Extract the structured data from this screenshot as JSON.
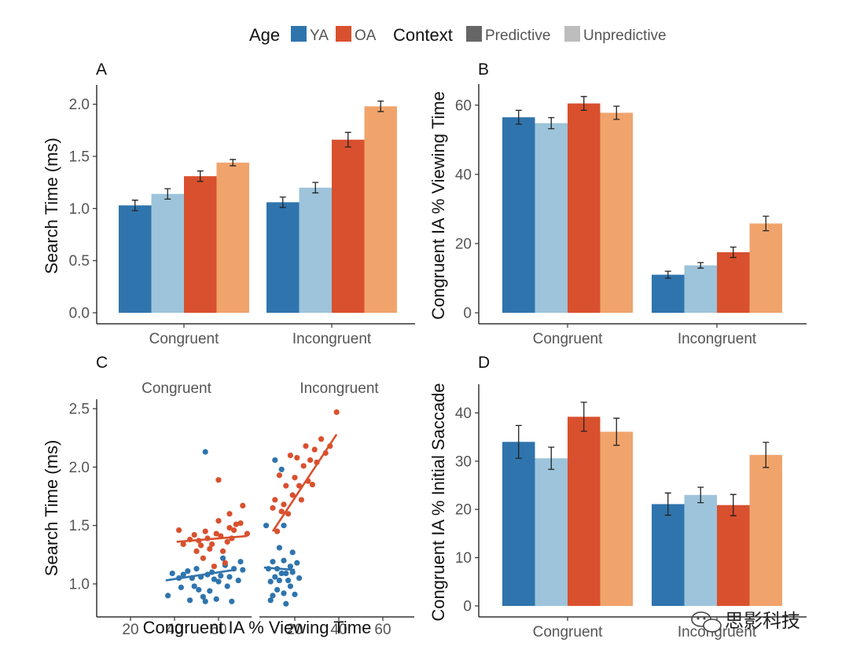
{
  "legend": {
    "age_title": "Age",
    "age_items": [
      {
        "label": "YA",
        "color": "#2f74ad"
      },
      {
        "label": "OA",
        "color": "#d9502e"
      }
    ],
    "context_title": "Context",
    "context_items": [
      {
        "label": "Predictive",
        "color": "#666666"
      },
      {
        "label": "Unpredictive",
        "color": "#bdbdbd"
      }
    ]
  },
  "colors": {
    "ya_pred": "#2f74ad",
    "ya_unpred": "#9dc4da",
    "oa_pred": "#d9502e",
    "oa_unpred": "#f0a46c"
  },
  "watermark": "思影科技",
  "chart_data": [
    {
      "panel": "A",
      "type": "bar",
      "categories": [
        "Congruent",
        "Incongruent"
      ],
      "ylabel": "Search Time (ms)",
      "xlabel": "",
      "ylim": [
        0,
        2.05
      ],
      "yticks": [
        0.0,
        0.5,
        1.0,
        1.5,
        2.0
      ],
      "ytick_labels": [
        "0.0",
        "0.5",
        "1.0",
        "1.5",
        "2.0"
      ],
      "series": [
        {
          "group": "YA-Predictive",
          "values": [
            1.03,
            1.06
          ],
          "errors": [
            0.05,
            0.05
          ]
        },
        {
          "group": "YA-Unpredictive",
          "values": [
            1.14,
            1.2
          ],
          "errors": [
            0.05,
            0.05
          ]
        },
        {
          "group": "OA-Predictive",
          "values": [
            1.31,
            1.66
          ],
          "errors": [
            0.05,
            0.07
          ]
        },
        {
          "group": "OA-Unpredictive",
          "values": [
            1.44,
            1.98
          ],
          "errors": [
            0.03,
            0.05
          ]
        }
      ]
    },
    {
      "panel": "B",
      "type": "bar",
      "categories": [
        "Congruent",
        "Incongruent"
      ],
      "ylabel": "Congruent IA % Viewing Time",
      "xlabel": "",
      "ylim": [
        0,
        62
      ],
      "yticks": [
        0,
        20,
        40,
        60
      ],
      "ytick_labels": [
        "0",
        "20",
        "40",
        "60"
      ],
      "series": [
        {
          "group": "YA-Predictive",
          "values": [
            56.5,
            11.0
          ],
          "errors": [
            2.0,
            1.0
          ]
        },
        {
          "group": "YA-Unpredictive",
          "values": [
            54.8,
            13.7
          ],
          "errors": [
            1.6,
            0.8
          ]
        },
        {
          "group": "OA-Predictive",
          "values": [
            60.5,
            17.5
          ],
          "errors": [
            2.0,
            1.5
          ]
        },
        {
          "group": "OA-Unpredictive",
          "values": [
            57.8,
            25.8
          ],
          "errors": [
            1.9,
            2.1
          ]
        }
      ]
    },
    {
      "panel": "C",
      "type": "scatter",
      "facets": [
        "Congruent",
        "Incongruent"
      ],
      "xlabel": "Congruent IA % Viewing Time",
      "ylabel": "Search Time (ms)",
      "xlim": [
        5,
        77
      ],
      "ylim": [
        0.77,
        2.55
      ],
      "xticks": [
        20,
        40,
        60
      ],
      "xtick_labels": [
        "20",
        "40",
        "60"
      ],
      "yticks": [
        1.0,
        1.5,
        2.0,
        2.5
      ],
      "ytick_labels": [
        "1.0",
        "1.5",
        "2.0",
        "2.5"
      ],
      "series": [
        {
          "group": "YA",
          "facet": "Congruent",
          "points": [
            [
              37,
              0.9
            ],
            [
              39,
              1.09
            ],
            [
              42,
              1.05
            ],
            [
              43,
              0.97
            ],
            [
              44,
              1.08
            ],
            [
              46,
              1.11
            ],
            [
              47,
              0.86
            ],
            [
              48,
              1.05
            ],
            [
              49,
              0.98
            ],
            [
              50,
              1.13
            ],
            [
              51,
              0.95
            ],
            [
              52,
              1.06
            ],
            [
              53,
              0.89
            ],
            [
              54,
              0.85
            ],
            [
              54,
              2.13
            ],
            [
              55,
              1.08
            ],
            [
              56,
              0.94
            ],
            [
              57,
              1.1
            ],
            [
              58,
              1.04
            ],
            [
              59,
              0.87
            ],
            [
              60,
              1.02
            ],
            [
              61,
              1.07
            ],
            [
              62,
              1.22
            ],
            [
              63,
              1.16
            ],
            [
              64,
              0.98
            ],
            [
              65,
              1.06
            ],
            [
              66,
              0.85
            ],
            [
              67,
              1.13
            ],
            [
              69,
              1.03
            ],
            [
              70,
              1.19
            ],
            [
              71,
              1.12
            ]
          ],
          "fit": [
            [
              36,
              1.03
            ],
            [
              67,
              1.12
            ]
          ]
        },
        {
          "group": "OA",
          "facet": "Congruent",
          "points": [
            [
              42,
              1.46
            ],
            [
              44,
              1.34
            ],
            [
              47,
              1.38
            ],
            [
              49,
              1.42
            ],
            [
              50,
              1.28
            ],
            [
              51,
              1.37
            ],
            [
              52,
              1.33
            ],
            [
              53,
              1.22
            ],
            [
              54,
              1.45
            ],
            [
              55,
              1.39
            ],
            [
              56,
              1.3
            ],
            [
              57,
              1.34
            ],
            [
              58,
              1.15
            ],
            [
              59,
              1.43
            ],
            [
              60,
              1.54
            ],
            [
              60,
              1.89
            ],
            [
              61,
              1.41
            ],
            [
              62,
              1.28
            ],
            [
              63,
              1.18
            ],
            [
              64,
              1.36
            ],
            [
              65,
              1.48
            ],
            [
              65,
              1.6
            ],
            [
              66,
              1.39
            ],
            [
              67,
              1.46
            ],
            [
              68,
              1.51
            ],
            [
              70,
              1.52
            ],
            [
              71,
              1.67
            ],
            [
              73,
              1.43
            ]
          ],
          "fit": [
            [
              41,
              1.36
            ],
            [
              73,
              1.41
            ]
          ]
        },
        {
          "group": "YA",
          "facet": "Incongruent",
          "points": [
            [
              7,
              1.5
            ],
            [
              8,
              1.13
            ],
            [
              9,
              0.86
            ],
            [
              9,
              1.02
            ],
            [
              10,
              0.9
            ],
            [
              10,
              1.19
            ],
            [
              11,
              2.06
            ],
            [
              11,
              1.06
            ],
            [
              12,
              0.95
            ],
            [
              12,
              1.13
            ],
            [
              13,
              1.31
            ],
            [
              13,
              1.03
            ],
            [
              14,
              1.98
            ],
            [
              14,
              1.09
            ],
            [
              15,
              1.5
            ],
            [
              15,
              1.2
            ],
            [
              15,
              0.92
            ],
            [
              16,
              0.83
            ],
            [
              16,
              1.09
            ],
            [
              17,
              1.03
            ],
            [
              18,
              1.15
            ],
            [
              18,
              0.98
            ],
            [
              19,
              1.27
            ],
            [
              19,
              1.1
            ],
            [
              20,
              0.91
            ],
            [
              21,
              1.18
            ],
            [
              22,
              1.05
            ]
          ],
          "fit": [
            [
              6,
              1.14
            ],
            [
              20,
              1.12
            ]
          ]
        },
        {
          "group": "OA",
          "facet": "Incongruent",
          "points": [
            [
              10,
              1.65
            ],
            [
              11,
              1.72
            ],
            [
              12,
              1.45
            ],
            [
              13,
              1.93
            ],
            [
              14,
              1.62
            ],
            [
              15,
              1.68
            ],
            [
              16,
              1.84
            ],
            [
              17,
              1.6
            ],
            [
              18,
              2.1
            ],
            [
              19,
              1.76
            ],
            [
              20,
              1.91
            ],
            [
              21,
              2.08
            ],
            [
              22,
              1.84
            ],
            [
              23,
              1.72
            ],
            [
              24,
              2.01
            ],
            [
              25,
              2.18
            ],
            [
              26,
              1.88
            ],
            [
              27,
              2.06
            ],
            [
              28,
              1.85
            ],
            [
              29,
              2.15
            ],
            [
              30,
              2.04
            ],
            [
              32,
              2.24
            ],
            [
              34,
              2.12
            ],
            [
              36,
              2.18
            ],
            [
              39,
              2.47
            ]
          ],
          "fit": [
            [
              10,
              1.45
            ],
            [
              39,
              2.28
            ]
          ]
        }
      ]
    },
    {
      "panel": "D",
      "type": "bar",
      "categories": [
        "Congruent",
        "Incongruent"
      ],
      "ylabel": "Congruent IA % Initial Saccade",
      "xlabel": "",
      "ylim": [
        0,
        43
      ],
      "yticks": [
        0,
        10,
        20,
        30,
        40
      ],
      "ytick_labels": [
        "0",
        "10",
        "20",
        "30",
        "40"
      ],
      "series": [
        {
          "group": "YA-Predictive",
          "values": [
            34.0,
            21.1
          ],
          "errors": [
            3.4,
            2.3
          ]
        },
        {
          "group": "YA-Unpredictive",
          "values": [
            30.6,
            23.0
          ],
          "errors": [
            2.3,
            1.6
          ]
        },
        {
          "group": "OA-Predictive",
          "values": [
            39.2,
            20.9
          ],
          "errors": [
            3.0,
            2.2
          ]
        },
        {
          "group": "OA-Unpredictive",
          "values": [
            36.1,
            31.3
          ],
          "errors": [
            2.8,
            2.6
          ]
        }
      ]
    }
  ]
}
